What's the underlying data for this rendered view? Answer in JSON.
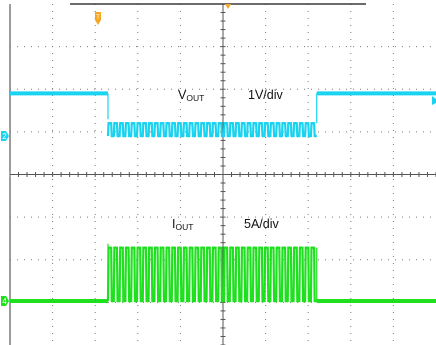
{
  "chart_data": {
    "type": "line",
    "title": "",
    "xlabel": "",
    "ylabel": "",
    "grid": true,
    "grid_divisions": {
      "x": 10,
      "y": 8
    },
    "colors": {
      "vout": "#19d3f0",
      "iout": "#1fe01f",
      "grid": "#7a7a7a",
      "trigger_marker": "#f5a623"
    },
    "markers": {
      "trigger": "T",
      "ch2": "2",
      "ch4": "4"
    },
    "series": [
      {
        "label_main": "V",
        "label_sub": "OUT",
        "scale": "1V/div",
        "channel": "2",
        "baseline_div": 1.0,
        "burst_low_div": 0.0,
        "burst_high_div": 0.3,
        "burst_start_div": 2.3,
        "burst_end_div": 7.2,
        "burst_periods": 36
      },
      {
        "label_main": "I",
        "label_sub": "OUT",
        "scale": "5A/div",
        "channel": "4",
        "baseline_div": 0.0,
        "burst_low_div": 0.0,
        "burst_high_div": 1.25,
        "burst_start_div": 2.3,
        "burst_end_div": 7.2,
        "burst_periods": 36
      }
    ]
  }
}
